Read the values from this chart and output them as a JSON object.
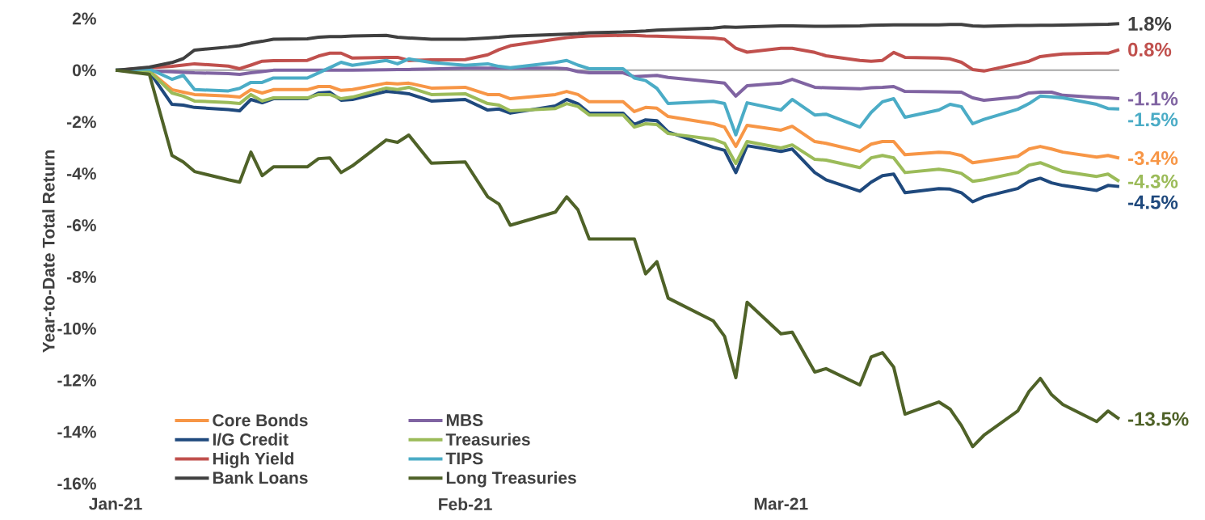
{
  "chart_data": {
    "type": "line",
    "ylabel": "Year-to-Date Total Return",
    "x": [
      "2021-01-01",
      "2021-01-04",
      "2021-01-06",
      "2021-01-07",
      "2021-01-08",
      "2021-01-11",
      "2021-01-12",
      "2021-01-13",
      "2021-01-14",
      "2021-01-15",
      "2021-01-18",
      "2021-01-19",
      "2021-01-20",
      "2021-01-21",
      "2021-01-22",
      "2021-01-25",
      "2021-01-26",
      "2021-01-27",
      "2021-01-29",
      "2021-02-01",
      "2021-02-03",
      "2021-02-04",
      "2021-02-05",
      "2021-02-09",
      "2021-02-10",
      "2021-02-11",
      "2021-02-12",
      "2021-02-15",
      "2021-02-16",
      "2021-02-17",
      "2021-02-18",
      "2021-02-19",
      "2021-02-23",
      "2021-02-24",
      "2021-02-25",
      "2021-02-26",
      "2021-03-01",
      "2021-03-02",
      "2021-03-04",
      "2021-03-05",
      "2021-03-08",
      "2021-03-09",
      "2021-03-10",
      "2021-03-11",
      "2021-03-12",
      "2021-03-15",
      "2021-03-16",
      "2021-03-17",
      "2021-03-18",
      "2021-03-19",
      "2021-03-22",
      "2021-03-23",
      "2021-03-24",
      "2021-03-25",
      "2021-03-26",
      "2021-03-29",
      "2021-03-30",
      "2021-03-31"
    ],
    "xlim": [
      "2021-01-01",
      "2021-03-31"
    ],
    "xticks": [
      {
        "value": "2021-01-01",
        "label": "Jan-21"
      },
      {
        "value": "2021-02-01",
        "label": "Feb-21"
      },
      {
        "value": "2021-03-01",
        "label": "Mar-21"
      }
    ],
    "ylim": [
      -16,
      2
    ],
    "yticks": [
      {
        "value": -16,
        "label": "-16%"
      },
      {
        "value": -14,
        "label": "-14%"
      },
      {
        "value": -12,
        "label": "-12%"
      },
      {
        "value": -10,
        "label": "-10%"
      },
      {
        "value": -8,
        "label": "-8%"
      },
      {
        "value": -6,
        "label": "-6%"
      },
      {
        "value": -4,
        "label": "-4%"
      },
      {
        "value": -2,
        "label": "-2%"
      },
      {
        "value": 0,
        "label": "0%"
      },
      {
        "value": 2,
        "label": "2%"
      }
    ],
    "ref_lines": [
      {
        "axis": "y",
        "value": 0,
        "color": "#a6a6a6"
      }
    ],
    "legend": "bottom left",
    "series": [
      {
        "name": "Core Bonds",
        "color": "#f79646",
        "values": [
          0,
          -0.03,
          -0.75,
          -0.85,
          -0.94,
          -1.0,
          -1.04,
          -0.75,
          -0.88,
          -0.75,
          -0.75,
          -0.63,
          -0.63,
          -0.78,
          -0.75,
          -0.5,
          -0.53,
          -0.5,
          -0.69,
          -0.66,
          -0.94,
          -0.94,
          -1.1,
          -0.94,
          -0.82,
          -0.94,
          -1.22,
          -1.22,
          -1.6,
          -1.44,
          -1.47,
          -1.79,
          -2.07,
          -2.2,
          -2.95,
          -2.13,
          -2.32,
          -2.17,
          -2.76,
          -2.83,
          -3.14,
          -2.86,
          -2.76,
          -2.76,
          -3.27,
          -3.17,
          -3.2,
          -3.3,
          -3.58,
          -3.52,
          -3.33,
          -3.05,
          -2.95,
          -3.05,
          -3.17,
          -3.36,
          -3.3,
          -3.4
        ],
        "value_labels": [
          null,
          null,
          null,
          null,
          null,
          null,
          null,
          null,
          null,
          null,
          null,
          null,
          null,
          null,
          null,
          null,
          null,
          null,
          null,
          null,
          null,
          null,
          null,
          null,
          null,
          null,
          null,
          null,
          null,
          null,
          null,
          null,
          null,
          null,
          null,
          null,
          null,
          null,
          null,
          null,
          null,
          null,
          null,
          null,
          null,
          null,
          null,
          null,
          null,
          null,
          null,
          null,
          null,
          null,
          null,
          null,
          null,
          "-3.4%"
        ]
      },
      {
        "name": "MBS",
        "color": "#8064a2",
        "values": [
          0,
          -0.03,
          -0.06,
          -0.08,
          -0.1,
          -0.13,
          -0.16,
          -0.1,
          -0.05,
          0,
          0,
          0,
          0,
          0,
          0,
          0.02,
          0.03,
          0.03,
          0.05,
          0.08,
          0.08,
          0.08,
          0.08,
          0.08,
          0.06,
          -0.05,
          -0.1,
          -0.1,
          -0.25,
          -0.22,
          -0.2,
          -0.28,
          -0.45,
          -0.5,
          -1.0,
          -0.6,
          -0.5,
          -0.35,
          -0.66,
          -0.68,
          -0.72,
          -0.68,
          -0.66,
          -0.63,
          -0.82,
          -0.83,
          -0.84,
          -0.85,
          -1.07,
          -1.16,
          -1.04,
          -0.88,
          -0.85,
          -0.85,
          -0.97,
          -1.05,
          -1.07,
          -1.1
        ],
        "value_labels": [
          null,
          null,
          null,
          null,
          null,
          null,
          null,
          null,
          null,
          null,
          null,
          null,
          null,
          null,
          null,
          null,
          null,
          null,
          null,
          null,
          null,
          null,
          null,
          null,
          null,
          null,
          null,
          null,
          null,
          null,
          null,
          null,
          null,
          null,
          null,
          null,
          null,
          null,
          null,
          null,
          null,
          null,
          null,
          null,
          null,
          null,
          null,
          null,
          null,
          null,
          null,
          null,
          null,
          null,
          null,
          null,
          null,
          "-1.1%"
        ]
      },
      {
        "name": "I/G Credit",
        "color": "#1f497d",
        "values": [
          0,
          -0.06,
          -1.32,
          -1.35,
          -1.44,
          -1.52,
          -1.57,
          -1.13,
          -1.26,
          -1.1,
          -1.1,
          -0.88,
          -0.85,
          -1.16,
          -1.13,
          -0.82,
          -0.86,
          -0.91,
          -1.19,
          -1.13,
          -1.54,
          -1.5,
          -1.66,
          -1.38,
          -1.13,
          -1.3,
          -1.66,
          -1.66,
          -2.1,
          -1.92,
          -1.95,
          -2.39,
          -2.98,
          -3.1,
          -3.96,
          -2.92,
          -3.14,
          -3.05,
          -3.96,
          -4.24,
          -4.68,
          -4.33,
          -4.08,
          -4.02,
          -4.74,
          -4.58,
          -4.6,
          -4.74,
          -5.09,
          -4.9,
          -4.58,
          -4.3,
          -4.18,
          -4.36,
          -4.46,
          -4.65,
          -4.46,
          -4.5
        ],
        "value_labels": [
          null,
          null,
          null,
          null,
          null,
          null,
          null,
          null,
          null,
          null,
          null,
          null,
          null,
          null,
          null,
          null,
          null,
          null,
          null,
          null,
          null,
          null,
          null,
          null,
          null,
          null,
          null,
          null,
          null,
          null,
          null,
          null,
          null,
          null,
          null,
          null,
          null,
          null,
          null,
          null,
          null,
          null,
          null,
          null,
          null,
          null,
          null,
          null,
          null,
          null,
          null,
          null,
          null,
          null,
          null,
          null,
          null,
          "-4.5%"
        ]
      },
      {
        "name": "Treasuries",
        "color": "#9bbb59",
        "values": [
          0,
          -0.03,
          -0.88,
          -1.0,
          -1.19,
          -1.25,
          -1.29,
          -0.94,
          -1.19,
          -1.07,
          -1.07,
          -0.94,
          -0.94,
          -1.1,
          -1.04,
          -0.69,
          -0.75,
          -0.66,
          -0.94,
          -0.91,
          -1.29,
          -1.35,
          -1.57,
          -1.48,
          -1.29,
          -1.4,
          -1.73,
          -1.73,
          -2.2,
          -2.07,
          -2.1,
          -2.45,
          -2.67,
          -2.83,
          -3.61,
          -2.76,
          -3.01,
          -2.89,
          -3.45,
          -3.48,
          -3.77,
          -3.39,
          -3.3,
          -3.39,
          -3.96,
          -3.83,
          -3.89,
          -3.99,
          -4.3,
          -4.24,
          -3.96,
          -3.67,
          -3.58,
          -3.75,
          -3.92,
          -4.11,
          -4.02,
          -4.3
        ],
        "value_labels": [
          null,
          null,
          null,
          null,
          null,
          null,
          null,
          null,
          null,
          null,
          null,
          null,
          null,
          null,
          null,
          null,
          null,
          null,
          null,
          null,
          null,
          null,
          null,
          null,
          null,
          null,
          null,
          null,
          null,
          null,
          null,
          null,
          null,
          null,
          null,
          null,
          null,
          null,
          null,
          null,
          null,
          null,
          null,
          null,
          null,
          null,
          null,
          null,
          null,
          null,
          null,
          null,
          null,
          null,
          null,
          null,
          null,
          "-4.3%"
        ]
      },
      {
        "name": "High Yield",
        "color": "#c0504d",
        "values": [
          0,
          0.1,
          0.15,
          0.2,
          0.25,
          0.16,
          0.06,
          0.2,
          0.35,
          0.37,
          0.38,
          0.55,
          0.66,
          0.66,
          0.47,
          0.5,
          0.5,
          0.38,
          0.4,
          0.41,
          0.6,
          0.8,
          0.95,
          1.2,
          1.26,
          1.3,
          1.33,
          1.35,
          1.35,
          1.33,
          1.32,
          1.3,
          1.25,
          1.2,
          0.85,
          0.7,
          0.85,
          0.85,
          0.69,
          0.56,
          0.38,
          0.35,
          0.38,
          0.69,
          0.5,
          0.47,
          0.44,
          0.31,
          0.03,
          -0.03,
          0.25,
          0.35,
          0.53,
          0.58,
          0.63,
          0.66,
          0.66,
          0.8
        ],
        "value_labels": [
          null,
          null,
          null,
          null,
          null,
          null,
          null,
          null,
          null,
          null,
          null,
          null,
          null,
          null,
          null,
          null,
          null,
          null,
          null,
          null,
          null,
          null,
          null,
          null,
          null,
          null,
          null,
          null,
          null,
          null,
          null,
          null,
          null,
          null,
          null,
          null,
          null,
          null,
          null,
          null,
          null,
          null,
          null,
          null,
          null,
          null,
          null,
          null,
          null,
          null,
          null,
          null,
          null,
          null,
          null,
          null,
          null,
          "0.8%"
        ]
      },
      {
        "name": "TIPS",
        "color": "#4bacc6",
        "values": [
          0,
          0.05,
          -0.35,
          -0.2,
          -0.75,
          -0.8,
          -0.7,
          -0.47,
          -0.47,
          -0.3,
          -0.3,
          -0.1,
          0.1,
          0.31,
          0.19,
          0.38,
          0.25,
          0.44,
          0.3,
          0.19,
          0.25,
          0.15,
          0.1,
          0.3,
          0.38,
          0.2,
          0.06,
          0.06,
          -0.3,
          -0.4,
          -0.7,
          -1.29,
          -1.2,
          -1.29,
          -2.5,
          -1.26,
          -1.54,
          -1.13,
          -1.73,
          -1.7,
          -2.2,
          -1.63,
          -1.22,
          -1.1,
          -1.82,
          -1.54,
          -1.32,
          -1.41,
          -2.07,
          -1.9,
          -1.51,
          -1.29,
          -1.0,
          -1.03,
          -1.07,
          -1.32,
          -1.48,
          -1.5
        ],
        "value_labels": [
          null,
          null,
          null,
          null,
          null,
          null,
          null,
          null,
          null,
          null,
          null,
          null,
          null,
          null,
          null,
          null,
          null,
          null,
          null,
          null,
          null,
          null,
          null,
          null,
          null,
          null,
          null,
          null,
          null,
          null,
          null,
          null,
          null,
          null,
          null,
          null,
          null,
          null,
          null,
          null,
          null,
          null,
          null,
          null,
          null,
          null,
          null,
          null,
          null,
          null,
          null,
          null,
          null,
          null,
          null,
          null,
          null,
          "-1.5%"
        ]
      },
      {
        "name": "Bank Loans",
        "color": "#404040",
        "values": [
          0,
          0.12,
          0.3,
          0.45,
          0.78,
          0.9,
          0.95,
          1.05,
          1.12,
          1.2,
          1.22,
          1.28,
          1.3,
          1.3,
          1.33,
          1.35,
          1.28,
          1.25,
          1.2,
          1.2,
          1.25,
          1.28,
          1.32,
          1.38,
          1.4,
          1.42,
          1.45,
          1.48,
          1.5,
          1.52,
          1.55,
          1.57,
          1.63,
          1.68,
          1.66,
          1.68,
          1.72,
          1.72,
          1.7,
          1.7,
          1.72,
          1.74,
          1.75,
          1.76,
          1.76,
          1.76,
          1.77,
          1.77,
          1.72,
          1.7,
          1.73,
          1.73,
          1.74,
          1.74,
          1.75,
          1.77,
          1.78,
          1.8
        ],
        "value_labels": [
          null,
          null,
          null,
          null,
          null,
          null,
          null,
          null,
          null,
          null,
          null,
          null,
          null,
          null,
          null,
          null,
          null,
          null,
          null,
          null,
          null,
          null,
          null,
          null,
          null,
          null,
          null,
          null,
          null,
          null,
          null,
          null,
          null,
          null,
          null,
          null,
          null,
          null,
          null,
          null,
          null,
          null,
          null,
          null,
          null,
          null,
          null,
          null,
          null,
          null,
          null,
          null,
          null,
          null,
          null,
          null,
          null,
          "1.8%"
        ]
      },
      {
        "name": "Long Treasuries",
        "color": "#4f6228",
        "values": [
          0,
          -0.16,
          -3.3,
          -3.55,
          -3.92,
          -4.24,
          -4.33,
          -3.17,
          -4.08,
          -3.74,
          -3.74,
          -3.42,
          -3.39,
          -3.96,
          -3.7,
          -2.7,
          -2.79,
          -2.51,
          -3.6,
          -3.55,
          -4.9,
          -5.18,
          -6.0,
          -5.49,
          -4.9,
          -5.4,
          -6.53,
          -6.53,
          -6.53,
          -7.88,
          -7.41,
          -8.82,
          -9.7,
          -10.3,
          -11.9,
          -8.98,
          -10.2,
          -10.14,
          -11.68,
          -11.55,
          -12.18,
          -11.1,
          -10.93,
          -11.49,
          -13.31,
          -12.84,
          -13.12,
          -13.75,
          -14.57,
          -14.13,
          -13.19,
          -12.43,
          -11.93,
          -12.56,
          -12.94,
          -13.6,
          -13.19,
          -13.5
        ],
        "value_labels": [
          null,
          null,
          null,
          null,
          null,
          null,
          null,
          null,
          null,
          null,
          null,
          null,
          null,
          null,
          null,
          null,
          null,
          null,
          null,
          null,
          null,
          null,
          null,
          null,
          null,
          null,
          null,
          null,
          null,
          null,
          null,
          null,
          null,
          null,
          null,
          null,
          null,
          null,
          null,
          null,
          null,
          null,
          null,
          null,
          null,
          null,
          null,
          null,
          null,
          null,
          null,
          null,
          null,
          null,
          null,
          null,
          null,
          "-13.5%"
        ]
      }
    ]
  }
}
